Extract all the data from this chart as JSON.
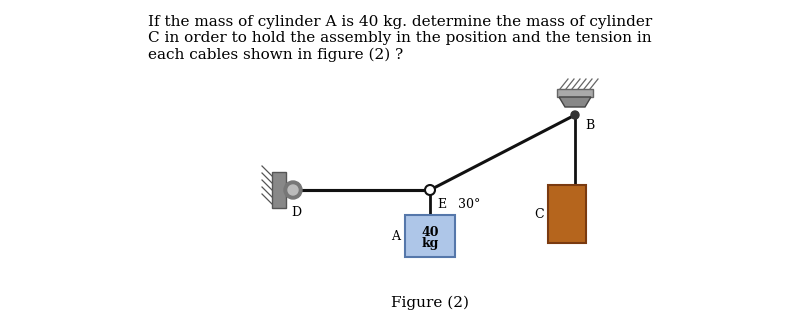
{
  "title_text": "If the mass of cylinder A is 40 kg. determine the mass of cylinder\nC in order to hold the assembly in the position and the tension in\neach cables shown in figure (2) ?",
  "figure_label": "Figure (2)",
  "bg_color": "#ffffff",
  "cable_color": "#111111",
  "cylinder_A_color": "#aec6e8",
  "cylinder_C_color": "#b5651d",
  "angle_label": "30°",
  "label_A": "A",
  "label_B": "B",
  "label_C": "C",
  "label_D": "D",
  "label_E": "E",
  "mass_line1": "40",
  "mass_line2": "kg"
}
